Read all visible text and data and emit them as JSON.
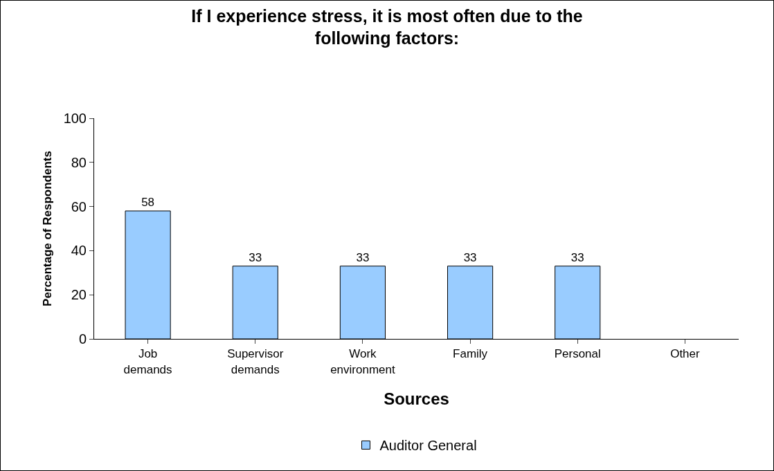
{
  "chart_data": {
    "type": "bar",
    "title": "If I experience stress, it is most often due to the following factors:",
    "xlabel": "Sources",
    "ylabel": "Percentage of Respondents",
    "categories": [
      "Job demands",
      "Supervisor demands",
      "Work environment",
      "Family",
      "Personal",
      "Other"
    ],
    "series": [
      {
        "name": "Auditor General",
        "color": "#99ccff",
        "values": [
          58,
          33,
          33,
          33,
          33,
          0
        ],
        "value_labels": [
          "58",
          "33",
          "33",
          "33",
          "33",
          null
        ]
      }
    ],
    "ylim": [
      0,
      100
    ],
    "yticks": [
      0,
      20,
      40,
      60,
      80,
      100
    ],
    "grid": false,
    "legend": "bottom"
  }
}
